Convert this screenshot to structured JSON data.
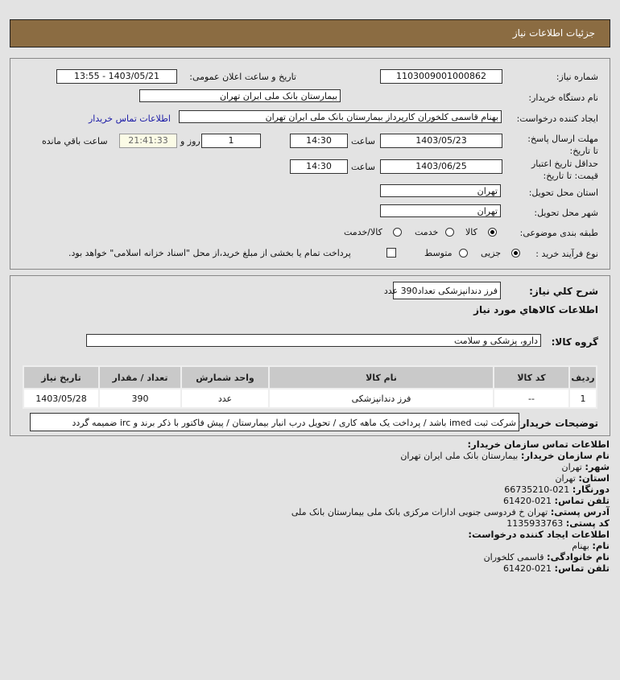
{
  "header": {
    "title": "جزئيات اطلاعات نياز"
  },
  "form": {
    "need_number_label": "شماره نیاز:",
    "need_number": "1103009001000862",
    "announce_label": "تاریخ و ساعت اعلان عمومی:",
    "announce_value": "1403/05/21 - 13:55",
    "buyer_org_label": "نام دستگاه خریدار:",
    "buyer_org": "بیمارستان بانک ملی ایران تهران",
    "creator_label": "ایجاد کننده درخواست:",
    "creator": "بهنام قاسمی کلخوران کارپرداز بیمارستان بانک ملی ایران تهران",
    "contact_link": "اطلاعات تماس خریدار",
    "deadline_label": "مهلت ارسال پاسخ: تا تاریخ:",
    "deadline_date": "1403/05/23",
    "time_label": "ساعت",
    "deadline_time": "14:30",
    "days": "1",
    "days_label": "روز و",
    "remaining": "21:41:33",
    "remaining_label": "ساعت باقي مانده",
    "validity_label": "حداقل تاریخ اعتبار قیمت: تا تاریخ:",
    "validity_date": "1403/06/25",
    "validity_time": "14:30",
    "province_label": "استان محل تحویل:",
    "province": "تهران",
    "city_label": "شهر محل تحویل:",
    "city": "تهران",
    "category_label": "طبقه بندی موضوعی:",
    "category_options": [
      {
        "label": "کالا",
        "selected": true
      },
      {
        "label": "خدمت",
        "selected": false
      },
      {
        "label": "کالا/خدمت",
        "selected": false
      }
    ],
    "process_label": "نوع فرآیند خرید :",
    "process_options": [
      {
        "label": "جزیی",
        "selected": true
      },
      {
        "label": "متوسط",
        "selected": false
      }
    ],
    "payment_note": "پرداخت تمام یا بخشی از مبلغ خرید،از محل \"اسناد خزانه اسلامی\" خواهد بود.",
    "payment_checked": false
  },
  "details": {
    "summary_label": "شرح كلي نياز:",
    "summary": "فرز دندانپزشکی تعداد390 عدد",
    "goods_title": "اطلاعات كالاهاي مورد نياز",
    "group_label": "گروه کالا:",
    "group": "دارو، پزشکی و سلامت",
    "table": {
      "headers": [
        "ردیف",
        "کد کالا",
        "نام کالا",
        "واحد شمارش",
        "تعداد / مقدار",
        "تاریخ نیاز"
      ],
      "rows": [
        [
          "1",
          "--",
          "فرز دندانپزشکی",
          "عدد",
          "390",
          "1403/05/28"
        ]
      ]
    },
    "notes_label": "توضیحات خریدار:",
    "notes": "شرکت ثبت imed باشد / پرداخت یک ماهه کاری / تحویل درب انبار بیمارستان / پیش فاکتور با ذکر برند و irc ضمیمه گردد"
  },
  "contact": {
    "title": "اطلاعات تماس سازمان خریدار:",
    "org_label": "نام سازمان خریدار:",
    "org": "بیمارستان بانک ملی ایران تهران",
    "city_label": "شهر:",
    "city": "تهران",
    "province_label": "استان:",
    "province": "تهران",
    "fax_label": "دورنگار:",
    "fax": "021-66735210",
    "phone_label": "تلفن تماس:",
    "phone": "021-61420",
    "address_label": "آدرس پستی:",
    "address": "تهران خ فردوسی جنوبی ادارات مرکزی بانک ملی بیمارستان بانک ملی",
    "postal_label": "کد پستی:",
    "postal": "1135933763",
    "creator_title": "اطلاعات ایجاد کننده درخواست:",
    "name_label": "نام:",
    "name": "بهنام",
    "family_label": "نام خانوادگی:",
    "family": "قاسمی کلخوران",
    "creator_phone_label": "تلفن تماس:",
    "creator_phone": "021-61420"
  }
}
